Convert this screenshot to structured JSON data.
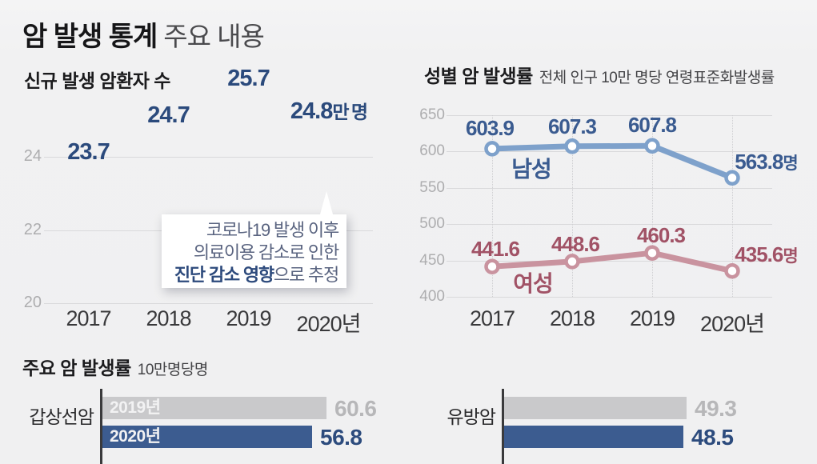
{
  "header": {
    "title_bold": "암 발생 통계",
    "title_light": "주요 내용"
  },
  "colors": {
    "background": "#f1f1f2",
    "bar_navy": "#3a598a",
    "bar_value_navy": "#2b4a7c",
    "male_line": "#7ea1cb",
    "male_label": "#3a5b90",
    "female_line": "#c9939f",
    "female_label": "#a15266",
    "gray_bar": "#c9c9cb",
    "gray_value": "#b7b7b9",
    "blue_bar": "#3c5c90",
    "blue_value": "#2c4b7d",
    "grid": "#d9d9db",
    "tick_gray": "#adadaf",
    "axis_dark": "#3a3a3c"
  },
  "chart_data": [
    {
      "id": "new-cancer-patients",
      "type": "bar",
      "title": "신규 발생 암환자 수",
      "unit": "만 명",
      "categories": [
        "2017",
        "2018",
        "2019",
        "2020년"
      ],
      "values": [
        23.7,
        24.7,
        25.7,
        24.8
      ],
      "value_suffixes": [
        "",
        "",
        "",
        "만 명"
      ],
      "ylim": [
        20,
        26.5
      ],
      "yticks": [
        24,
        22,
        20
      ],
      "grid": true,
      "annotation": {
        "line1": "코로나19 발생 이후",
        "line2": "의료이용 감소로 인한",
        "line3_bold": "진단 감소 영향",
        "line3_rest": "으로 추정",
        "points_to": "2020년"
      }
    },
    {
      "id": "cancer-rate-by-gender",
      "type": "line",
      "title": "성별 암 발생률",
      "subtitle": "전체 인구 10만 명당 연령표준화발생률",
      "x": [
        "2017",
        "2018",
        "2019",
        "2020년"
      ],
      "yticks": [
        650,
        600,
        550,
        500,
        450,
        400
      ],
      "ylim": [
        400,
        650
      ],
      "grid": true,
      "legend_position": "inline-near-first-point",
      "series": [
        {
          "name": "남성",
          "values": [
            603.9,
            607.3,
            607.8,
            563.8
          ],
          "labels": [
            "603.9",
            "607.3",
            "607.8",
            "563.8"
          ],
          "last_suffix": "명",
          "color": "#7ea1cb",
          "label_color": "#3a5b90"
        },
        {
          "name": "여성",
          "values": [
            441.6,
            448.6,
            460.3,
            435.6
          ],
          "labels": [
            "441.6",
            "448.6",
            "460.3",
            "435.6"
          ],
          "last_suffix": "명",
          "color": "#c9939f",
          "label_color": "#a15266"
        }
      ]
    },
    {
      "id": "major-cancer-rates",
      "type": "bar",
      "orientation": "horizontal",
      "title": "주요 암 발생률",
      "subtitle": "10만명당명",
      "series_labels": [
        "2019년",
        "2020년"
      ],
      "groups": [
        {
          "category": "갑상선암",
          "values": [
            60.6,
            56.8
          ],
          "show_series_labels": true
        },
        {
          "category": "유방암",
          "values": [
            49.3,
            48.5
          ],
          "show_series_labels": false
        }
      ]
    }
  ]
}
